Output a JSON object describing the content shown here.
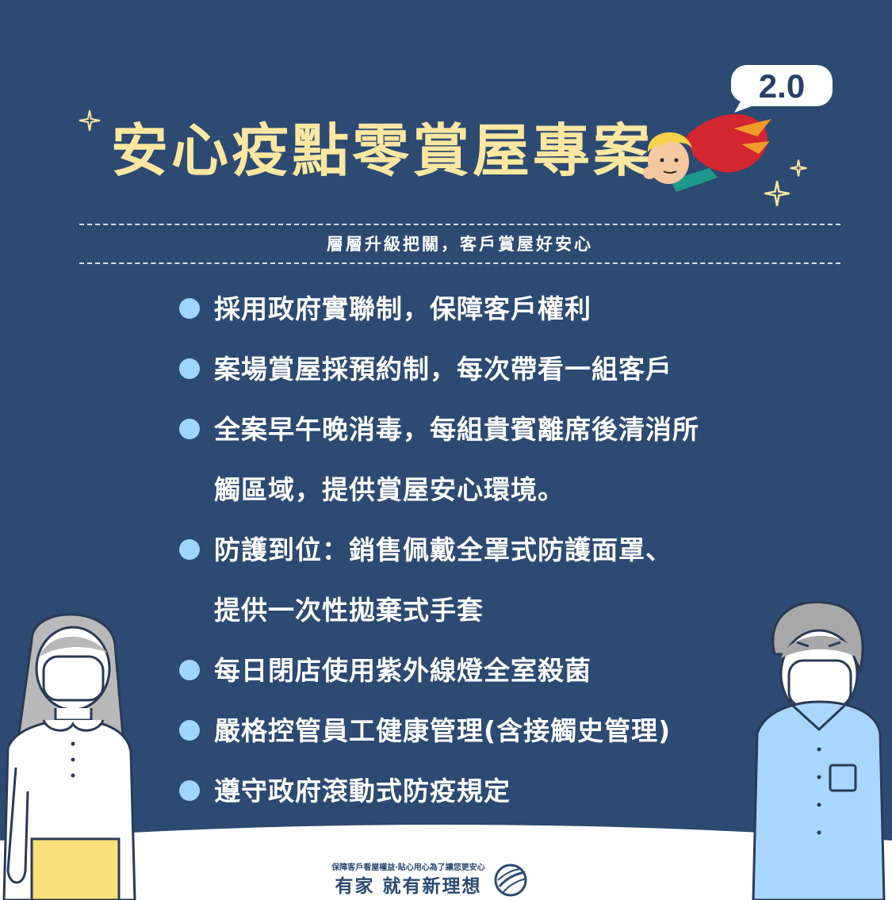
{
  "header": {
    "title": "安心疫點零賞屋專案",
    "version_badge": "2.0",
    "subtitle": "層層升級把關，客戶賞屋好安心"
  },
  "measures": [
    {
      "lines": [
        "採用政府實聯制，保障客戶權利"
      ]
    },
    {
      "lines": [
        "案場賞屋採預約制，每次帶看一組客戶"
      ]
    },
    {
      "lines": [
        "全案早午晚消毒，每組貴賓離席後清消所",
        "觸區域，提供賞屋安心環境。"
      ]
    },
    {
      "lines": [
        "防護到位：銷售佩戴全罩式防護面罩、",
        "提供一次性拋棄式手套"
      ]
    },
    {
      "lines": [
        "每日閉店使用紫外線燈全室殺菌"
      ]
    },
    {
      "lines": [
        "嚴格控管員工健康管理(含接觸史管理)"
      ]
    },
    {
      "lines": [
        "遵守政府滾動式防疫規定"
      ]
    }
  ],
  "footer": {
    "tagline": "保障客戶看屋權益‧貼心用心為了讓您更安心",
    "brand": "有家 就有新理想",
    "logo_icon": "globe-logo-icon"
  },
  "colors": {
    "background": "#2c4a72",
    "title": "#fbe7a0",
    "bullet": "#9ed6ff",
    "footer_bg": "#ffffff"
  }
}
